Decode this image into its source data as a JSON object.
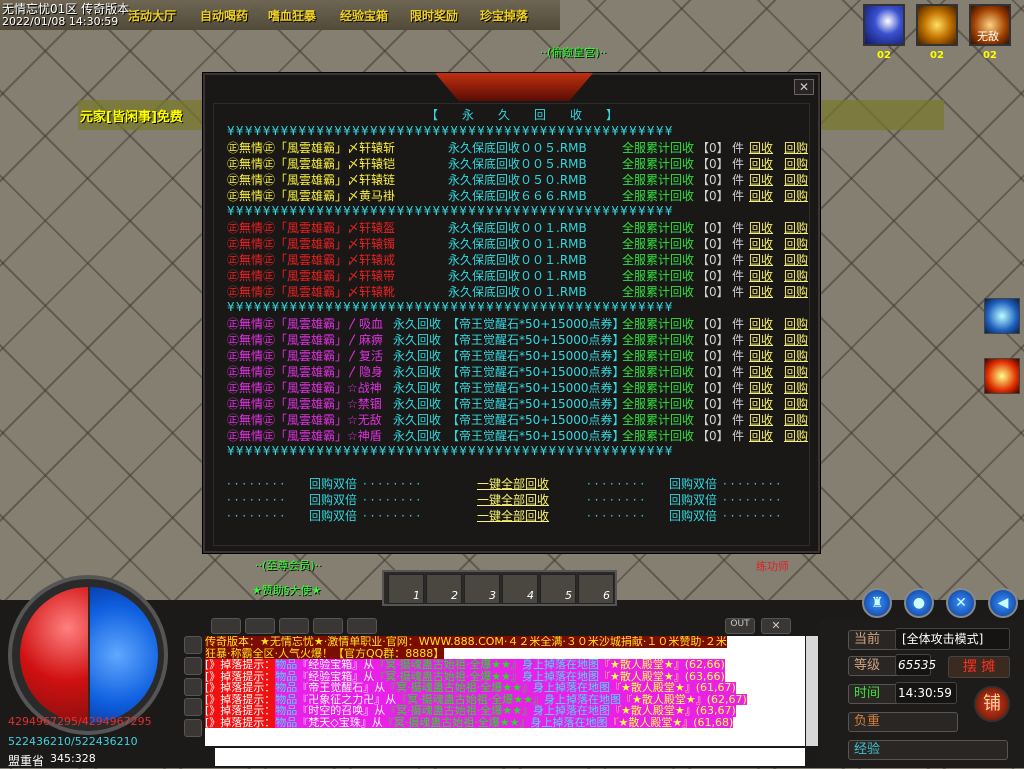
{
  "window": {
    "title": "无情忘忧01区 传奇版本",
    "datetime": "2022/01/08 14:30:59"
  },
  "menu": [
    "活动大厅",
    "自动喝药",
    "嗜血狂暴",
    "经验宝箱",
    "限时奖励",
    "珍宝掉落"
  ],
  "buffs": [
    {
      "icon": "shield-buff-icon",
      "count": "02"
    },
    {
      "icon": "gold-burst-buff-icon",
      "count": "02"
    },
    {
      "icon": "invincible-buff-icon",
      "label": "无敌",
      "count": "02"
    }
  ],
  "banner": "元家[皆闲事]免费",
  "npcs": {
    "top": "··(偷窥皇宫)··",
    "bottom_title": "··(至尊会员)··",
    "bottom_name": "★赞助§大使★",
    "trainer": "练功师"
  },
  "dialog": {
    "title": "【　　永　　久　　回　　收　　】",
    "yen_line": "¥¥¥¥¥¥¥¥¥¥¥¥¥¥¥¥¥¥¥¥¥¥¥¥¥¥¥¥¥¥¥¥¥¥¥¥¥¥¥¥¥¥¥¥¥¥¥¥¥¥",
    "total_label": "全服累计回收",
    "count": "【0】",
    "unit": "件",
    "recycle": "回收",
    "buyback": "回购",
    "sections": [
      {
        "color": "#f8f040",
        "items": [
          {
            "name": "㊣無情㊣「風雲雄霸」〆轩辕斩",
            "price": "永久保底回收００５.RMB"
          },
          {
            "name": "㊣無情㊣「風雲雄霸」〆轩辕铠",
            "price": "永久保底回收００５.RMB"
          },
          {
            "name": "㊣無情㊣「風雲雄霸」〆轩辕链",
            "price": "永久保底回收０５０.RMB"
          },
          {
            "name": "㊣無情㊣「風雲雄霸」〆黄马褂",
            "price": "永久保底回收６６６.RMB"
          }
        ]
      },
      {
        "color": "#e82020",
        "items": [
          {
            "name": "㊣無情㊣「風雲雄霸」〆轩辕盔",
            "price": "永久保底回收００１.RMB"
          },
          {
            "name": "㊣無情㊣「風雲雄霸」〆轩辕镯",
            "price": "永久保底回收００１.RMB"
          },
          {
            "name": "㊣無情㊣「風雲雄霸」〆轩辕戒",
            "price": "永久保底回收００１.RMB"
          },
          {
            "name": "㊣無情㊣「風雲雄霸」〆轩辕带",
            "price": "永久保底回收００１.RMB"
          },
          {
            "name": "㊣無情㊣「風雲雄霸」〆轩辕靴",
            "price": "永久保底回收００１.RMB"
          }
        ]
      },
      {
        "color": "#e030e0",
        "items": [
          {
            "name": "㊣無情㊣「風雲雄霸」〳吸血",
            "price": "永久回收",
            "reward": "【帝王觉醒石*50+15000点券】"
          },
          {
            "name": "㊣無情㊣「風雲雄霸」〳麻痹",
            "price": "永久回收",
            "reward": "【帝王觉醒石*50+15000点券】"
          },
          {
            "name": "㊣無情㊣「風雲雄霸」〳复活",
            "price": "永久回收",
            "reward": "【帝王觉醒石*50+15000点券】"
          },
          {
            "name": "㊣無情㊣「風雲雄霸」〳隐身",
            "price": "永久回收",
            "reward": "【帝王觉醒石*50+15000点券】"
          },
          {
            "name": "㊣無情㊣「風雲雄霸」☆战神",
            "price": "永久回收",
            "reward": "【帝王觉醒石*50+15000点券】"
          },
          {
            "name": "㊣無情㊣「風雲雄霸」☆禁锢",
            "price": "永久回收",
            "reward": "【帝王觉醒石*50+15000点券】"
          },
          {
            "name": "㊣無情㊣「風雲雄霸」☆无敌",
            "price": "永久回收",
            "reward": "【帝王觉醒石*50+15000点券】"
          },
          {
            "name": "㊣無情㊣「風雲雄霸」☆神盾",
            "price": "永久回收",
            "reward": "【帝王觉醒石*50+15000点券】"
          }
        ]
      }
    ],
    "footer": {
      "dots": "· · · · · · · ·",
      "double": "回购双倍",
      "all": "一键全部回收"
    }
  },
  "player": {
    "hp": "4294967295/4294967295",
    "mp": "522436210/522436210",
    "map": "盟重省",
    "coords": "345:328"
  },
  "skillbar": [
    "1",
    "2",
    "3",
    "4",
    "5",
    "6"
  ],
  "chat": {
    "out": "OUT",
    "announce": [
      "传奇版本：★无情忘忧★·激情单职业·官网：WWW.888.COM·４２米全满·３０米沙城捐献·１０米赞助·２米",
      "狂暴·称霸全区·人气火爆！【官方QQ群：8888】"
    ],
    "drop_prefix": "[》掉落提示：",
    "drops": [
      {
        "item": "『经验宝箱』从",
        "monster": "『冥·摄魂蛊古始祖·全爆★★』",
        "map": "『★散人殿堂★』(62,66)"
      },
      {
        "item": "『经验宝箱』从",
        "monster": "『冥·摄魂蛊古始祖·全爆★★』",
        "map": "『★散人殿堂★』(63,66)"
      },
      {
        "item": "『帝王觉醒石』从",
        "monster": "『冥·摄魂蛊古始祖·全爆★★』",
        "map": "『★散人殿堂★』(61,67)"
      },
      {
        "item": "『卍象征之力卍』从",
        "monster": "『冥·摄魂蛊古始祖·全爆★★』",
        "map": "『★散人殿堂★』(62,67)"
      },
      {
        "item": "『时空的召唤』从",
        "monster": "『冥·摄魂蛊古始祖·全爆★★』",
        "map": "『★散人殿堂★』(63,67)"
      },
      {
        "item": "『梵天◇宝珠』从",
        "monster": "『冥·摄魂蛊古始祖·全爆★★』",
        "map": "『★散人殿堂★』(61,68)"
      }
    ],
    "drop_word": "物品",
    "drop_mid": "身上掉落在地图"
  },
  "status": {
    "mode_label": "当前",
    "mode": "[全体攻击模式]",
    "level_label": "等级",
    "level": "65535",
    "stall": "摆 摊",
    "time_label": "时间",
    "time": "14:30:59",
    "weight_label": "负重",
    "exp_label": "经验",
    "shop": "铺"
  }
}
